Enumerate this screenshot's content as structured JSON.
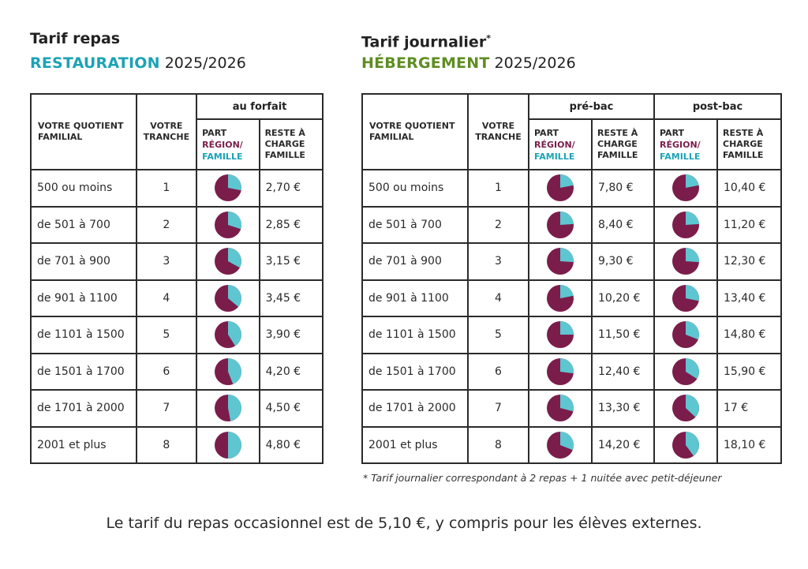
{
  "colors": {
    "region": "#7b1d4b",
    "famille": "#5ec6d1",
    "teal_heading": "#1ba3b5",
    "green_heading": "#5f8d22"
  },
  "left": {
    "title": "Tarif repas",
    "subtitle_keyword": "RESTAURATION",
    "subtitle_year": "2025/2026",
    "group_label": "au forfait",
    "headers": {
      "quotient": "VOTRE QUOTIENT FAMILIAL",
      "tranche": "VOTRE TRANCHE",
      "part_prefix": "PART",
      "part_region": "RÉGION/",
      "part_famille": "FAMILLE",
      "reste": "RESTE À CHARGE FAMILLE"
    },
    "rows": [
      {
        "quotient": "500 ou moins",
        "tranche": "1",
        "famille_share": 0.28,
        "reste": "2,70 €"
      },
      {
        "quotient": "de 501 à 700",
        "tranche": "2",
        "famille_share": 0.3,
        "reste": "2,85 €"
      },
      {
        "quotient": "de 701 à 900",
        "tranche": "3",
        "famille_share": 0.33,
        "reste": "3,15 €"
      },
      {
        "quotient": "de 901 à 1100",
        "tranche": "4",
        "famille_share": 0.36,
        "reste": "3,45 €"
      },
      {
        "quotient": "de 1101 à 1500",
        "tranche": "5",
        "famille_share": 0.41,
        "reste": "3,90 €"
      },
      {
        "quotient": "de 1501 à 1700",
        "tranche": "6",
        "famille_share": 0.44,
        "reste": "4,20 €"
      },
      {
        "quotient": "de 1701 à 2000",
        "tranche": "7",
        "famille_share": 0.47,
        "reste": "4,50 €"
      },
      {
        "quotient": "2001 et plus",
        "tranche": "8",
        "famille_share": 0.5,
        "reste": "4,80 €"
      }
    ]
  },
  "right": {
    "title": "Tarif journalier",
    "title_mark": "*",
    "subtitle_keyword": "HÉBERGEMENT",
    "subtitle_year": "2025/2026",
    "group_prebac": "pré-bac",
    "group_postbac": "post-bac",
    "headers": {
      "quotient": "VOTRE QUOTIENT FAMILIAL",
      "tranche": "VOTRE TRANCHE",
      "part_prefix": "PART",
      "part_region": "RÉGION/",
      "part_famille": "FAMILLE",
      "reste": "RESTE À CHARGE FAMILLE"
    },
    "rows": [
      {
        "quotient": "500 ou moins",
        "tranche": "1",
        "pre_share": 0.22,
        "pre_reste": "7,80 €",
        "post_share": 0.22,
        "post_reste": "10,40 €"
      },
      {
        "quotient": "de 501 à 700",
        "tranche": "2",
        "pre_share": 0.24,
        "pre_reste": "8,40 €",
        "post_share": 0.24,
        "post_reste": "11,20 €"
      },
      {
        "quotient": "de 701 à 900",
        "tranche": "3",
        "pre_share": 0.26,
        "pre_reste": "9,30 €",
        "post_share": 0.26,
        "post_reste": "12,30 €"
      },
      {
        "quotient": "de 901 à 1100",
        "tranche": "4",
        "pre_share": 0.22,
        "pre_reste": "10,20 €",
        "post_share": 0.28,
        "post_reste": "13,40 €"
      },
      {
        "quotient": "de 1101 à 1500",
        "tranche": "5",
        "pre_share": 0.25,
        "pre_reste": "11,50 €",
        "post_share": 0.31,
        "post_reste": "14,80 €"
      },
      {
        "quotient": "de 1501 à 1700",
        "tranche": "6",
        "pre_share": 0.27,
        "pre_reste": "12,40 €",
        "post_share": 0.34,
        "post_reste": "15,90 €"
      },
      {
        "quotient": "de 1701 à 2000",
        "tranche": "7",
        "pre_share": 0.29,
        "pre_reste": "13,30 €",
        "post_share": 0.37,
        "post_reste": "17 €"
      },
      {
        "quotient": "2001 et plus",
        "tranche": "8",
        "pre_share": 0.31,
        "pre_reste": "14,20 €",
        "post_share": 0.4,
        "post_reste": "18,10 €"
      }
    ],
    "footnote": "* Tarif journalier correspondant à 2 repas + 1 nuitée avec petit-déjeuner"
  },
  "bottom_note": "Le tarif du repas occasionnel est de 5,10 €, y compris pour les élèves externes."
}
